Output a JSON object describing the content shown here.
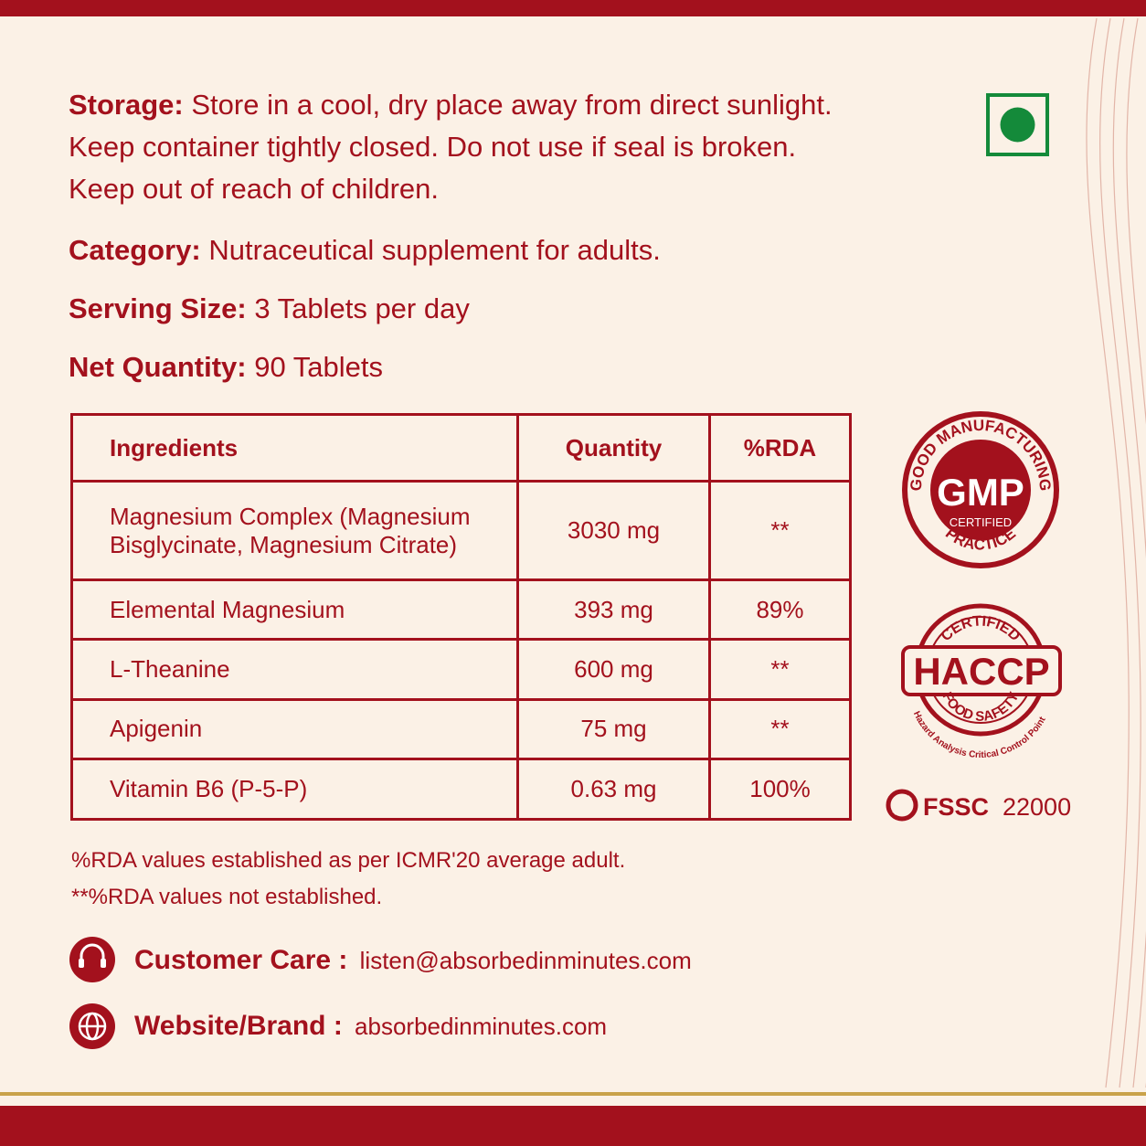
{
  "storage": {
    "label": "Storage:",
    "lines": [
      "Store in a cool, dry place away from direct sunlight.",
      "Keep container tightly closed. Do not use if seal is broken.",
      "Keep out of reach of children."
    ]
  },
  "category": {
    "label": "Category:",
    "text": "Nutraceutical supplement for adults."
  },
  "serving_size": {
    "label": "Serving Size:",
    "text": "3 Tablets per day"
  },
  "net_quantity": {
    "label": "Net Quantity:",
    "text": "90 Tablets"
  },
  "table": {
    "header": [
      "Ingredients",
      "Quantity",
      "%RDA"
    ],
    "rows": [
      [
        "Magnesium Complex (Magnesium Bisglycinate, Magnesium Citrate)",
        "3030 mg",
        "**"
      ],
      [
        "Elemental Magnesium",
        "393 mg",
        "89%"
      ],
      [
        "L-Theanine",
        "600 mg",
        "**"
      ],
      [
        "Apigenin",
        "75 mg",
        "**"
      ],
      [
        "Vitamin B6 (P-5-P)",
        "0.63 mg",
        "100%"
      ]
    ]
  },
  "footnotes": [
    "%RDA values established as per ICMR'20 average adult.",
    "**%RDA values not established."
  ],
  "contacts": [
    {
      "label": "Customer Care :",
      "value": "listen@absorbedinminutes.com"
    },
    {
      "label": "Website/Brand :",
      "value": "absorbedinminutes.com"
    }
  ],
  "badges": {
    "gmp": {
      "top": "GOOD MANUFACTURING",
      "center": "GMP",
      "sub": "CERTIFIED",
      "bottom": "PRACTICE"
    },
    "haccp": {
      "top": "CERTIFIED",
      "center": "HACCP",
      "bottom": "FOOD SAFETY",
      "outer": "Hazard Analysis Critical Control Point"
    },
    "fssc": {
      "name": "FSSC",
      "number": "22000"
    }
  }
}
